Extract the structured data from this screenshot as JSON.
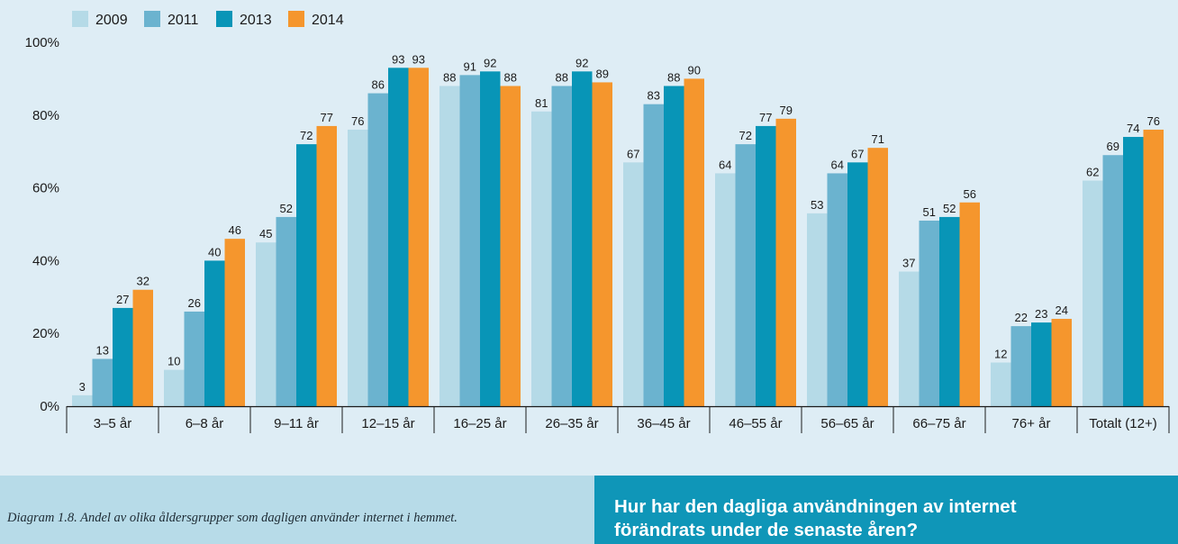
{
  "chart_data": {
    "type": "bar",
    "title": "",
    "xlabel": "",
    "ylabel": "",
    "ylim": [
      0,
      100
    ],
    "y_ticks": [
      "0%",
      "20%",
      "40%",
      "60%",
      "80%",
      "100%"
    ],
    "legend_position": "top-left",
    "grid": false,
    "categories": [
      "3–5 år",
      "6–8 år",
      "9–11 år",
      "12–15 år",
      "16–25 år",
      "26–35 år",
      "36–45 år",
      "46–55 år",
      "56–65 år",
      "66–75 år",
      "76+ år",
      "Totalt (12+)"
    ],
    "series": [
      {
        "name": "2009",
        "color": "#b5dae7",
        "values": [
          3,
          10,
          45,
          76,
          88,
          81,
          67,
          64,
          53,
          37,
          12,
          62
        ]
      },
      {
        "name": "2011",
        "color": "#6bb3cf",
        "values": [
          13,
          26,
          52,
          86,
          91,
          88,
          83,
          72,
          64,
          51,
          22,
          69
        ]
      },
      {
        "name": "2013",
        "color": "#0895b7",
        "values": [
          27,
          40,
          72,
          93,
          92,
          92,
          88,
          77,
          67,
          52,
          23,
          74
        ]
      },
      {
        "name": "2014",
        "color": "#f5962d",
        "values": [
          32,
          46,
          77,
          93,
          88,
          89,
          90,
          79,
          71,
          56,
          24,
          76
        ]
      }
    ]
  },
  "footer": {
    "caption": "Diagram 1.8. Andel av olika åldersgrupper som dagligen använder internet i hemmet.",
    "question_line1": "Hur har den dagliga användningen av internet",
    "question_line2": "förändrats under de senaste åren?"
  }
}
